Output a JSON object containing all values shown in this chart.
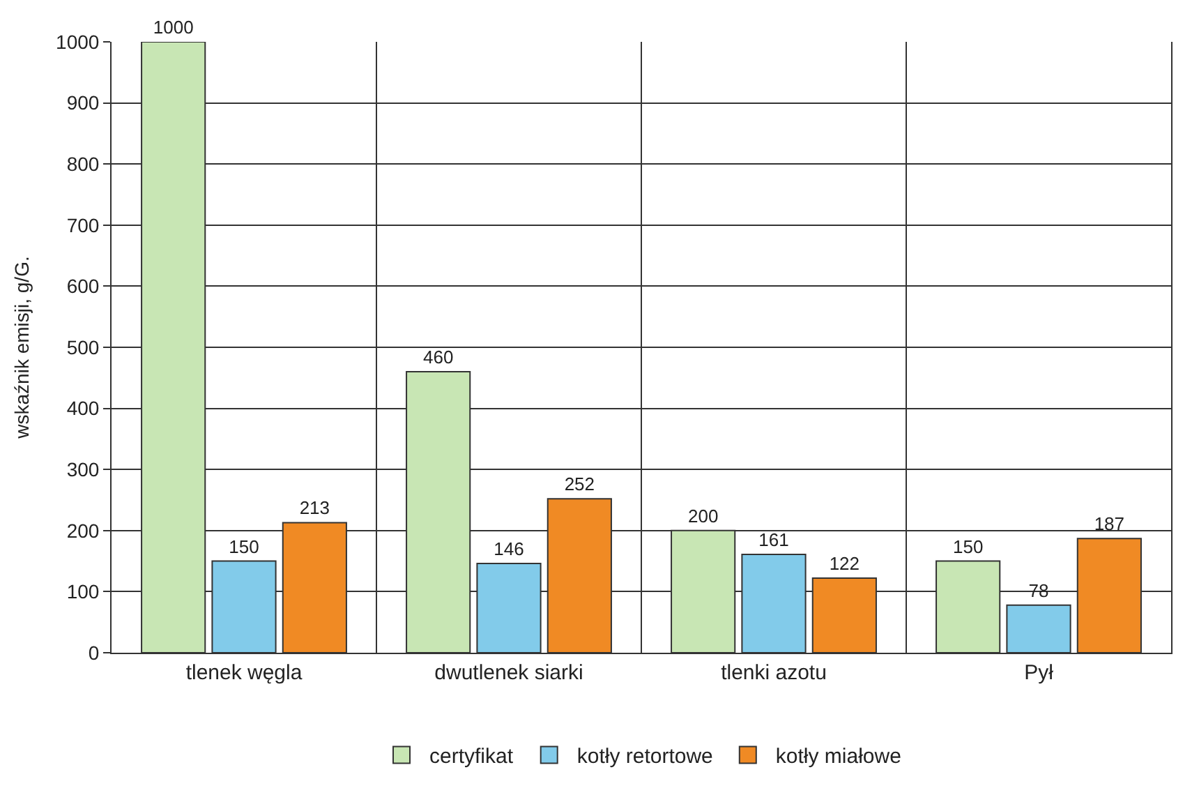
{
  "chart_data": {
    "type": "bar",
    "ylabel": "wskaźnik emisji, g/G.",
    "categories": [
      "tlenek węgla",
      "dwutlenek siarki",
      "tlenki azotu",
      "Pył"
    ],
    "series": [
      {
        "name": "certyfikat",
        "color": "#c8e6b4",
        "values": [
          1000,
          460,
          200,
          150
        ]
      },
      {
        "name": "kotły retortowe",
        "color": "#82cbea",
        "values": [
          150,
          146,
          161,
          78
        ]
      },
      {
        "name": "kotły miałowe",
        "color": "#f08a24",
        "values": [
          213,
          252,
          122,
          187
        ]
      }
    ],
    "ylim": [
      0,
      1000
    ],
    "yticks": [
      0,
      100,
      200,
      300,
      400,
      500,
      600,
      700,
      800,
      900,
      1000
    ],
    "grid": true,
    "legend": "bottom",
    "data_labels": true
  }
}
